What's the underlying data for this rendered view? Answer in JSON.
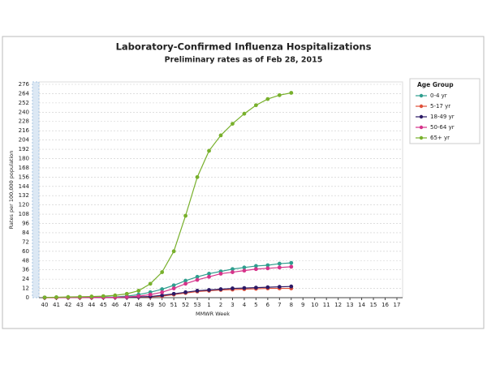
{
  "chart_data": {
    "type": "line",
    "title": "Laboratory-Confirmed Influenza Hospitalizations",
    "subtitle": "Preliminary rates as of Feb 28, 2015",
    "x_label": "MMWR Week",
    "y_label": "Rates per 100,000 population",
    "legend_title": "Age Group",
    "legend_position": "right",
    "grid": true,
    "categories": [
      "40",
      "41",
      "42",
      "43",
      "44",
      "45",
      "46",
      "47",
      "48",
      "49",
      "50",
      "51",
      "52",
      "53",
      "1",
      "2",
      "3",
      "4",
      "5",
      "6",
      "7",
      "8",
      "9",
      "10",
      "11",
      "12",
      "13",
      "14",
      "15",
      "16",
      "17"
    ],
    "ylim": [
      0,
      276
    ],
    "yticks": [
      0,
      12,
      24,
      36,
      48,
      60,
      72,
      84,
      96,
      108,
      120,
      132,
      144,
      156,
      168,
      180,
      192,
      204,
      216,
      228,
      240,
      252,
      264,
      276
    ],
    "series": [
      {
        "name": "0-4 yr",
        "color": "#2e9e8e",
        "values": [
          0.2,
          0.3,
          0.4,
          0.5,
          0.6,
          0.8,
          1,
          2,
          4,
          7,
          11,
          16,
          22,
          27,
          31,
          34,
          37,
          39,
          41,
          42,
          44,
          45,
          null,
          null,
          null,
          null,
          null,
          null,
          null,
          null,
          null
        ]
      },
      {
        "name": "5-17 yr",
        "color": "#e0503a",
        "values": [
          0,
          0,
          0.1,
          0.1,
          0.1,
          0.2,
          0.3,
          0.5,
          0.8,
          1,
          2,
          4,
          6,
          8,
          9,
          10,
          10.5,
          11,
          11.5,
          12,
          12,
          12,
          null,
          null,
          null,
          null,
          null,
          null,
          null,
          null,
          null
        ]
      },
      {
        "name": "18-49 yr",
        "color": "#2c1a66",
        "values": [
          0.1,
          0.1,
          0.2,
          0.2,
          0.3,
          0.3,
          0.4,
          0.6,
          1,
          1.5,
          3,
          5,
          7,
          9,
          10,
          11,
          12,
          12.5,
          13,
          13.5,
          14,
          14.5,
          null,
          null,
          null,
          null,
          null,
          null,
          null,
          null,
          null
        ]
      },
      {
        "name": "50-64 yr",
        "color": "#d6338a",
        "values": [
          0.1,
          0.1,
          0.2,
          0.2,
          0.3,
          0.4,
          0.5,
          1,
          2,
          4,
          7,
          12,
          18,
          23,
          27,
          31,
          33,
          35,
          37,
          38,
          39,
          40,
          null,
          null,
          null,
          null,
          null,
          null,
          null,
          null,
          null
        ]
      },
      {
        "name": "65+ yr",
        "color": "#78b02c",
        "values": [
          0.3,
          0.6,
          0.9,
          1.2,
          1.5,
          2,
          3,
          5,
          9,
          18,
          33,
          60,
          106,
          156,
          190,
          210,
          225,
          238,
          249,
          257,
          262,
          265,
          null,
          null,
          null,
          null,
          null,
          null,
          null,
          null,
          null
        ]
      }
    ]
  }
}
